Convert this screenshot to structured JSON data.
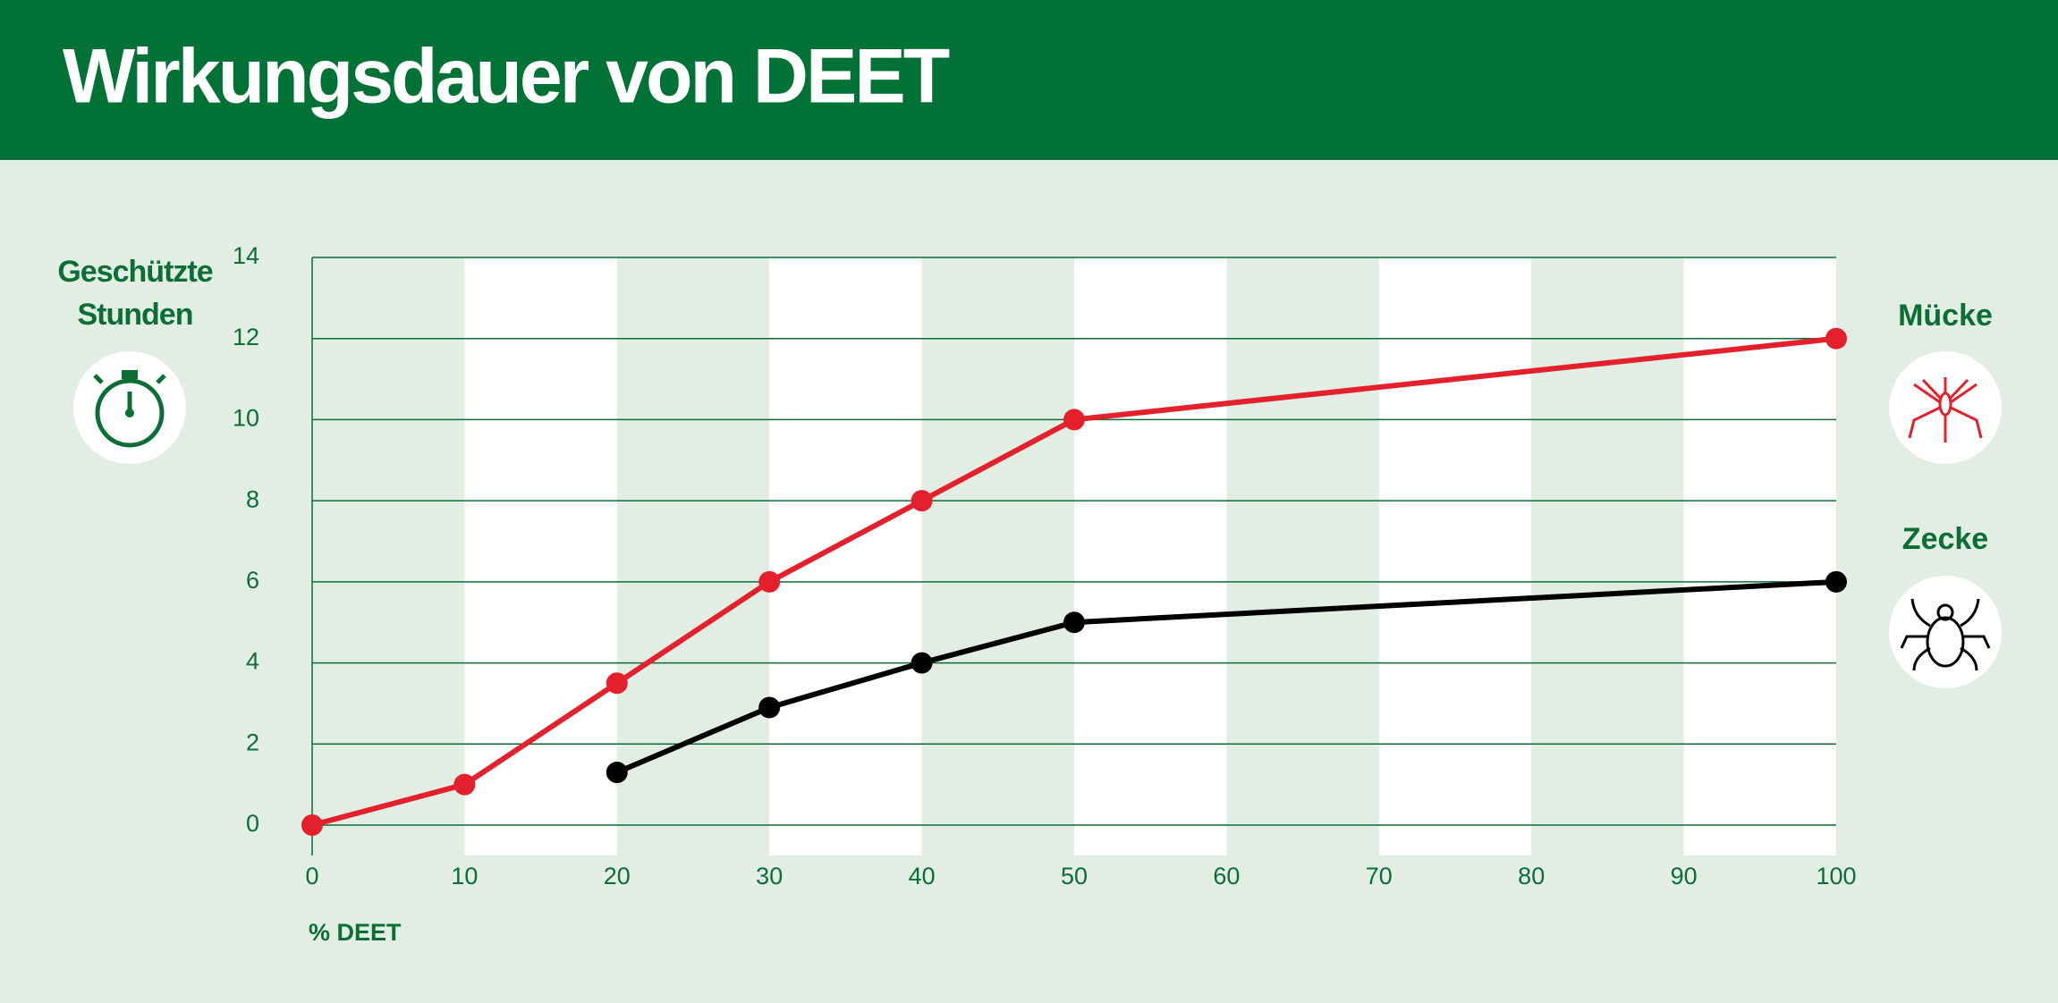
{
  "chart_data": {
    "type": "line",
    "title": "Wirkungsdauer von DEET",
    "y_label": "Geschützte Stunden",
    "x_label": "% DEET",
    "x": [
      0,
      10,
      20,
      30,
      40,
      50,
      100
    ],
    "series": [
      {
        "name": "Mücke",
        "color": "#e3202b",
        "values": [
          0,
          1,
          3.5,
          6,
          8,
          10,
          12
        ]
      },
      {
        "name": "Zecke",
        "color": "#000000",
        "values": [
          null,
          null,
          1.3,
          2.9,
          4,
          5,
          6
        ]
      }
    ],
    "xlim": [
      0,
      100
    ],
    "xticks": [
      0,
      10,
      20,
      30,
      40,
      50,
      60,
      70,
      80,
      90,
      100
    ],
    "ylim": [
      0,
      14
    ],
    "yticks": [
      0,
      2,
      4,
      6,
      8,
      10,
      12,
      14
    ],
    "grid": true
  }
}
